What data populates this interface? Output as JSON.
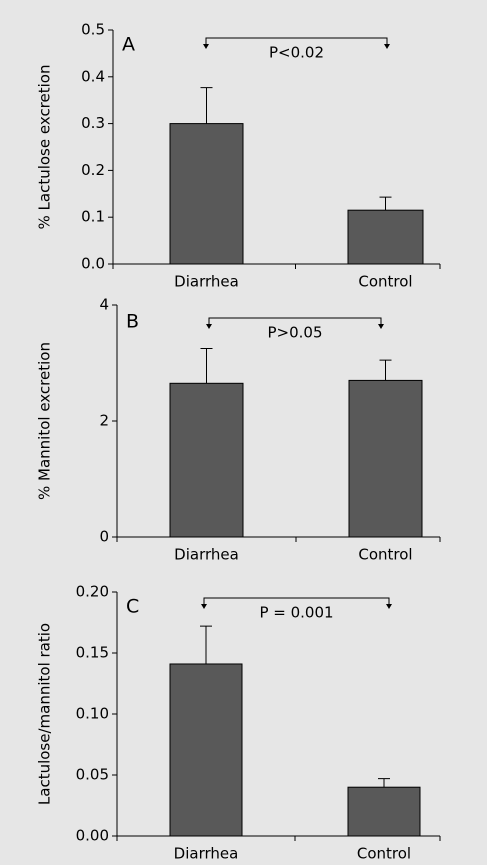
{
  "chart_data": [
    {
      "type": "bar",
      "panel_label": "A",
      "annotation": "P<0.02",
      "y_label": "% Lactulose excretion",
      "categories": [
        "Diarrhea",
        "Control"
      ],
      "values": [
        0.3,
        0.115
      ],
      "errors": [
        0.077,
        0.028
      ],
      "color": "#595959",
      "ylim": [
        0,
        0.5
      ],
      "yticks": [
        {
          "value": 0,
          "label": "0.0"
        },
        0.1,
        0.2,
        0.3,
        0.4,
        0.5
      ]
    },
    {
      "type": "bar",
      "panel_label": "B",
      "annotation": "P>0.05",
      "y_label": "% Mannitol excretion",
      "categories": [
        "Diarrhea",
        "Control"
      ],
      "values": [
        2.65,
        2.7
      ],
      "errors": [
        0.6,
        0.35
      ],
      "color": "#595959",
      "ylim": [
        0,
        4
      ],
      "yticks": [
        0,
        2,
        4
      ]
    },
    {
      "type": "bar",
      "panel_label": "C",
      "annotation": "P = 0.001",
      "y_label": "Lactulose/mannitol ratio",
      "categories": [
        "Diarrhea",
        "Control"
      ],
      "values": [
        0.141,
        0.04
      ],
      "errors": [
        0.031,
        0.007
      ],
      "color": "#595959",
      "ylim": [
        0,
        0.2
      ],
      "yticks": [
        {
          "value": 0,
          "label": "0.00"
        },
        0.05,
        {
          "value": 0.1,
          "label": "0.10"
        },
        0.15,
        {
          "value": 0.2,
          "label": "0.20"
        }
      ]
    }
  ]
}
